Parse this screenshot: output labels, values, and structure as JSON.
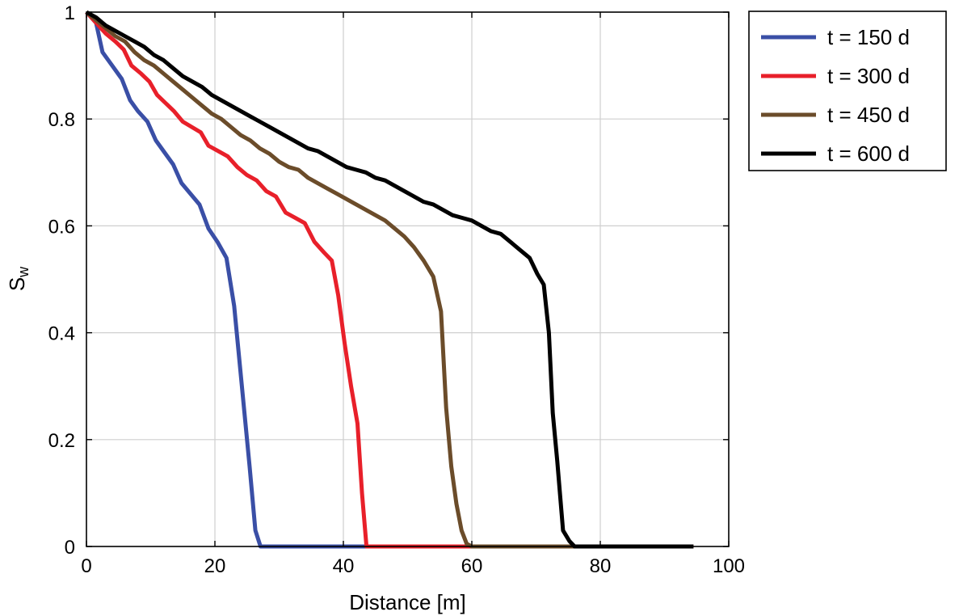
{
  "chart_data": {
    "type": "line",
    "xlabel": "Distance [m]",
    "ylabel": "S",
    "ylabel_subscript": "w",
    "xlim": [
      0,
      100
    ],
    "ylim": [
      0,
      1
    ],
    "xticks": [
      0,
      20,
      40,
      60,
      80,
      100
    ],
    "yticks": [
      0,
      0.2,
      0.4,
      0.6,
      0.8,
      1
    ],
    "xtick_labels": [
      "0",
      "20",
      "40",
      "60",
      "80",
      "100"
    ],
    "ytick_labels": [
      "0",
      "0.2",
      "0.4",
      "0.6",
      "0.8",
      "1"
    ],
    "grid": true,
    "legend_position": "outside-top-right",
    "series": [
      {
        "name": "t = 150 d",
        "color": "#3a4fa6",
        "x": [
          0,
          1.5,
          2.5,
          4,
          5.5,
          6.8,
          8,
          9.5,
          10.8,
          12,
          13.5,
          14.8,
          16.2,
          17.6,
          19,
          20.4,
          21.8,
          23,
          24.2,
          25.4,
          26.3,
          27.1,
          28,
          40,
          60,
          80,
          94.5
        ],
        "y": [
          1,
          0.98,
          0.925,
          0.9,
          0.875,
          0.835,
          0.815,
          0.795,
          0.76,
          0.74,
          0.715,
          0.68,
          0.66,
          0.64,
          0.595,
          0.57,
          0.54,
          0.45,
          0.3,
          0.15,
          0.03,
          0,
          0,
          0,
          0,
          0,
          0
        ]
      },
      {
        "name": "t = 300 d",
        "color": "#e8202a",
        "x": [
          0,
          1.5,
          3,
          4.5,
          5.8,
          7,
          8.5,
          9.8,
          11,
          12.3,
          13.6,
          15,
          16.4,
          17.8,
          19,
          20.5,
          22,
          23.5,
          25,
          26.5,
          28,
          29.5,
          31,
          32.5,
          34,
          35.5,
          37,
          38.2,
          39.2,
          40.2,
          41.2,
          42.2,
          42.9,
          43.6,
          45,
          60,
          80,
          94.5
        ],
        "y": [
          1,
          0.98,
          0.96,
          0.945,
          0.93,
          0.9,
          0.885,
          0.87,
          0.845,
          0.83,
          0.815,
          0.795,
          0.785,
          0.775,
          0.75,
          0.74,
          0.73,
          0.71,
          0.695,
          0.685,
          0.665,
          0.655,
          0.625,
          0.615,
          0.605,
          0.57,
          0.55,
          0.535,
          0.47,
          0.38,
          0.3,
          0.23,
          0.1,
          0,
          0,
          0,
          0,
          0
        ]
      },
      {
        "name": "t = 450 d",
        "color": "#6b4c2a",
        "x": [
          0,
          1.5,
          3,
          4.5,
          6,
          7.5,
          9,
          10.5,
          12,
          13.5,
          15,
          16.5,
          18,
          19.5,
          21,
          22.5,
          24,
          25.5,
          27,
          28.5,
          30,
          31.5,
          33,
          34.5,
          36,
          37.5,
          39,
          40.5,
          42,
          43.5,
          45,
          46.5,
          48,
          49.5,
          51,
          52.5,
          54,
          55.2,
          56,
          56.8,
          57.6,
          58.4,
          59.2,
          60,
          61,
          80,
          94.5
        ],
        "y": [
          1,
          0.985,
          0.97,
          0.955,
          0.945,
          0.925,
          0.91,
          0.9,
          0.885,
          0.87,
          0.855,
          0.84,
          0.825,
          0.81,
          0.8,
          0.785,
          0.77,
          0.76,
          0.745,
          0.735,
          0.72,
          0.71,
          0.705,
          0.69,
          0.68,
          0.67,
          0.66,
          0.65,
          0.64,
          0.63,
          0.62,
          0.61,
          0.595,
          0.58,
          0.56,
          0.535,
          0.505,
          0.44,
          0.26,
          0.15,
          0.08,
          0.03,
          0.005,
          0,
          0,
          0,
          0
        ]
      },
      {
        "name": "t = 600 d",
        "color": "#000000",
        "x": [
          0,
          1.5,
          3,
          4.5,
          6,
          7.5,
          9,
          10.5,
          12,
          13.5,
          15,
          16.5,
          18,
          19.5,
          21,
          22.5,
          24,
          25.5,
          27,
          28.5,
          30,
          31.5,
          33,
          34.5,
          36,
          37.5,
          39,
          40.5,
          42,
          43.5,
          45,
          46.5,
          48,
          49.5,
          51,
          52.5,
          54,
          55.5,
          57,
          58.5,
          60,
          61.5,
          63,
          64.5,
          66,
          67.5,
          69,
          70.2,
          71.2,
          72,
          72.6,
          73.3,
          74.2,
          75.2,
          76,
          80,
          94.5
        ],
        "y": [
          1,
          0.99,
          0.975,
          0.965,
          0.955,
          0.945,
          0.935,
          0.92,
          0.91,
          0.895,
          0.88,
          0.87,
          0.86,
          0.845,
          0.835,
          0.825,
          0.815,
          0.805,
          0.795,
          0.785,
          0.775,
          0.765,
          0.755,
          0.745,
          0.74,
          0.73,
          0.72,
          0.71,
          0.705,
          0.7,
          0.69,
          0.685,
          0.675,
          0.665,
          0.655,
          0.645,
          0.64,
          0.63,
          0.62,
          0.615,
          0.61,
          0.6,
          0.59,
          0.585,
          0.57,
          0.555,
          0.54,
          0.51,
          0.49,
          0.4,
          0.25,
          0.16,
          0.03,
          0.01,
          0,
          0,
          0
        ]
      }
    ]
  }
}
